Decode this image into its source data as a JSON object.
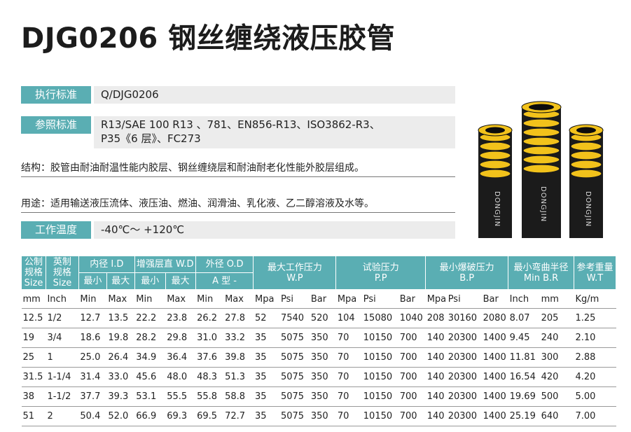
{
  "title": "DJG0206 钢丝缠绕液压胶管",
  "exec_standard": {
    "label": "执行标准",
    "value": "Q/DJG0206"
  },
  "ref_standard": {
    "label": "参照标准",
    "line1": "R13/SAE 100 R13 、781、EN856-R13、ISO3862-R3、",
    "line2": "P35《6 层》、FC273"
  },
  "structure": "结构：胶管由耐油耐温性能内胶层、钢丝缠绕层和耐油耐老化性能外胶层组成。",
  "usage": "用途：适用输送液压流体、液压油、燃油、润滑油、乳化液、乙二醇溶液及水等。",
  "temp": {
    "label": "工作温度",
    "value": "-40℃～ +120℃"
  },
  "photo": {
    "brand": "DONGJIN",
    "colors": {
      "hose": "#1b1b1b",
      "wire": "#f2c21b"
    }
  },
  "table": {
    "h": {
      "metric": [
        "公制",
        "规格",
        "Size"
      ],
      "inch": [
        "英制",
        "规格",
        "Size"
      ],
      "id": "内径 I.D",
      "rw": "增强层直 W.D",
      "od": "外径 O.D",
      "wp": [
        "最大工作压力",
        "W.P"
      ],
      "tp": [
        "试验压力",
        "P.P"
      ],
      "bp": [
        "最小爆破压力",
        "B.P"
      ],
      "br": [
        "最小弯曲半径",
        "Min B.R"
      ],
      "wt": [
        "参考重量",
        "W.T"
      ],
      "min": "最小",
      "max": "最大",
      "atype": "A 型 -"
    },
    "units": [
      "mm",
      "Inch",
      "Min",
      "Max",
      "Min",
      "Max",
      "Min",
      "Max",
      "Mpa",
      "Psi",
      "Bar",
      "Mpa",
      "Psi",
      "Bar",
      "Mpa",
      "Psi",
      "Bar",
      "Inch",
      "mm",
      "Kg/m"
    ],
    "rows": [
      [
        "12.5",
        "1/2",
        "12.7",
        "13.5",
        "22.2",
        "23.8",
        "26.2",
        "27.8",
        "52",
        "7540",
        "520",
        "104",
        "15080",
        "1040",
        "208",
        "30160",
        "2080",
        "8.07",
        "205",
        "1.25"
      ],
      [
        "19",
        "3/4",
        "18.6",
        "19.8",
        "28.2",
        "29.8",
        "31.0",
        "33.2",
        "35",
        "5075",
        "350",
        "70",
        "10150",
        "700",
        "140",
        "20300",
        "1400",
        "9.45",
        "240",
        "2.10"
      ],
      [
        "25",
        "1",
        "25.0",
        "26.4",
        "34.9",
        "36.4",
        "37.6",
        "39.8",
        "35",
        "5075",
        "350",
        "70",
        "10150",
        "700",
        "140",
        "20300",
        "1400",
        "11.81",
        "300",
        "2.88"
      ],
      [
        "31.5",
        "1-1/4",
        "31.4",
        "33.0",
        "45.6",
        "48.0",
        "48.3",
        "51.3",
        "35",
        "5075",
        "350",
        "70",
        "10150",
        "700",
        "140",
        "20300",
        "1400",
        "16.54",
        "420",
        "4.20"
      ],
      [
        "38",
        "1-1/2",
        "37.7",
        "39.3",
        "53.1",
        "55.5",
        "55.8",
        "58.8",
        "35",
        "5075",
        "350",
        "70",
        "10150",
        "700",
        "140",
        "20300",
        "1400",
        "19.69",
        "500",
        "5.00"
      ],
      [
        "51",
        "2",
        "50.4",
        "52.0",
        "66.9",
        "69.3",
        "69.5",
        "72.7",
        "35",
        "5075",
        "350",
        "70",
        "10150",
        "700",
        "140",
        "20300",
        "1400",
        "25.19",
        "640",
        "7.00"
      ]
    ]
  }
}
